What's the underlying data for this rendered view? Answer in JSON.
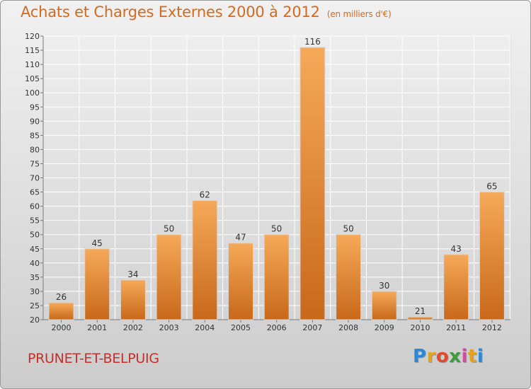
{
  "header": {
    "title": "Achats et Charges Externes 2000 à 2012",
    "unit": "(en milliers d'€)"
  },
  "footer": {
    "place": "PRUNET-ET-BELPUIG",
    "logo_letters": [
      "P",
      "r",
      "o",
      "x",
      "i",
      "t",
      "i"
    ],
    "logo_colors": [
      "#2a88d8",
      "#e3a21a",
      "#e24a2a",
      "#3a9c3a",
      "#d64aa0",
      "#e3a21a",
      "#2a88d8"
    ]
  },
  "colors": {
    "bar_light": "#f6a95a",
    "bar_dark": "#c8681a",
    "title": "#d46a1f",
    "place": "#c2312c"
  },
  "chart_data": {
    "type": "bar",
    "categories": [
      "2000",
      "2001",
      "2002",
      "2003",
      "2004",
      "2005",
      "2006",
      "2007",
      "2008",
      "2009",
      "2010",
      "2011",
      "2012"
    ],
    "values": [
      26,
      45,
      34,
      50,
      62,
      47,
      50,
      116,
      50,
      30,
      21,
      43,
      65
    ],
    "ylim": [
      20,
      120
    ],
    "yticks": [
      20,
      25,
      30,
      35,
      40,
      45,
      50,
      55,
      60,
      65,
      70,
      75,
      80,
      85,
      90,
      95,
      100,
      105,
      110,
      115,
      120
    ],
    "grid": true
  }
}
